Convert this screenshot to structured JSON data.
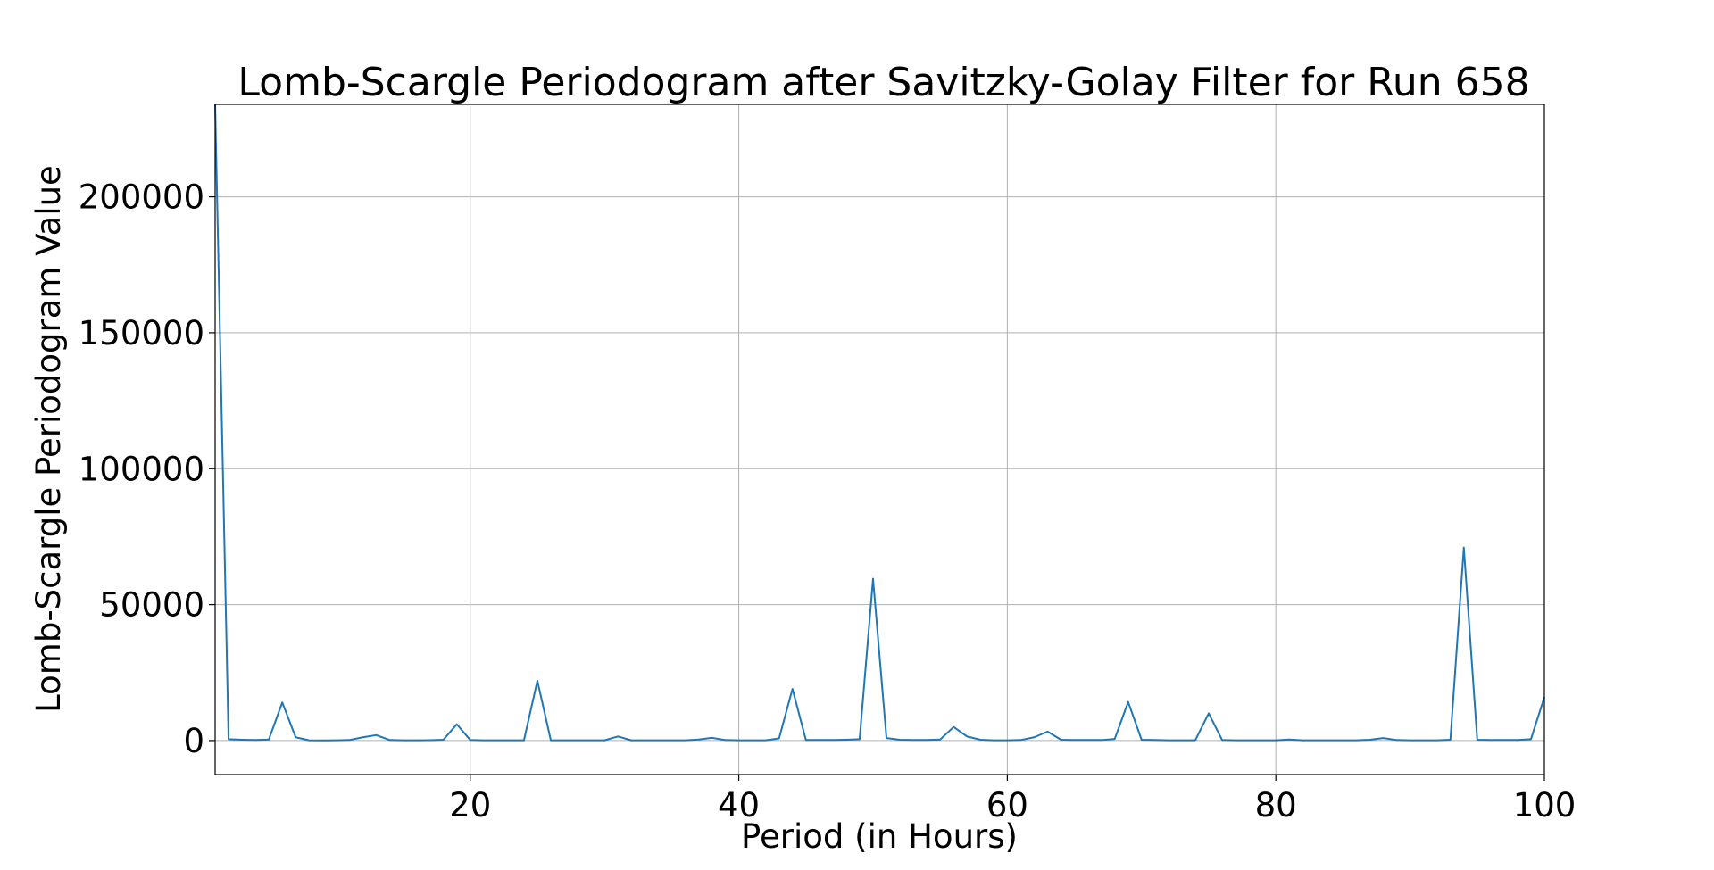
{
  "chart_data": {
    "type": "line",
    "title": "Lomb-Scargle Periodogram after Savitzky-Golay Filter for Run 658",
    "xlabel": "Period (in Hours)",
    "ylabel": "Lomb-Scargle Periodogram Value",
    "xlim": [
      1,
      100
    ],
    "ylim": [
      -12500,
      234000
    ],
    "xticks": [
      20,
      40,
      60,
      80,
      100
    ],
    "yticks": [
      0,
      50000,
      100000,
      150000,
      200000
    ],
    "grid": true,
    "series_color": "#1f77b4",
    "series": [
      {
        "x": [
          1,
          2,
          3,
          4,
          5,
          6,
          7,
          8,
          9,
          10,
          11,
          12,
          13,
          14,
          15,
          16,
          17,
          18,
          19,
          20,
          21,
          22,
          23,
          24,
          25,
          26,
          27,
          28,
          29,
          30,
          31,
          32,
          33,
          34,
          35,
          36,
          37,
          38,
          39,
          40,
          41,
          42,
          43,
          44,
          45,
          46,
          47,
          48,
          49,
          50,
          51,
          52,
          53,
          54,
          55,
          56,
          57,
          58,
          59,
          60,
          61,
          62,
          63,
          64,
          65,
          66,
          67,
          68,
          69,
          70,
          71,
          72,
          73,
          74,
          75,
          76,
          77,
          78,
          79,
          80,
          81,
          82,
          83,
          84,
          85,
          86,
          87,
          88,
          89,
          90,
          91,
          92,
          93,
          94,
          95,
          96,
          97,
          98,
          99,
          100
        ],
        "values": [
          234000,
          500,
          300,
          200,
          400,
          14000,
          1200,
          100,
          50,
          100,
          200,
          1200,
          2000,
          200,
          100,
          100,
          150,
          300,
          6000,
          200,
          100,
          100,
          100,
          100,
          22000,
          100,
          100,
          100,
          100,
          100,
          1500,
          100,
          100,
          100,
          100,
          100,
          400,
          1000,
          200,
          100,
          100,
          100,
          800,
          19000,
          200,
          200,
          200,
          300,
          500,
          59500,
          900,
          300,
          200,
          200,
          400,
          5000,
          1500,
          300,
          100,
          100,
          200,
          1200,
          3300,
          300,
          200,
          200,
          200,
          600,
          14200,
          300,
          200,
          100,
          100,
          100,
          10000,
          200,
          100,
          100,
          100,
          100,
          400,
          100,
          100,
          100,
          100,
          100,
          300,
          900,
          200,
          100,
          100,
          100,
          300,
          71000,
          300,
          200,
          200,
          200,
          500,
          16000
        ]
      }
    ]
  }
}
